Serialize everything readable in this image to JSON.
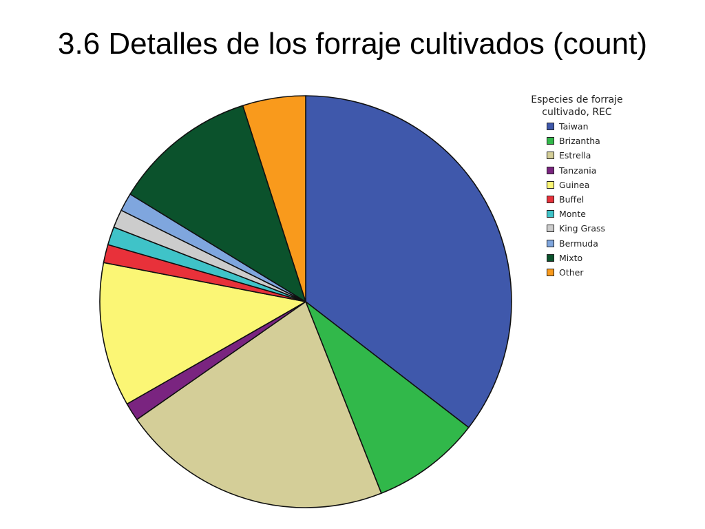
{
  "title": "3.6 Detalles de los forraje cultivados (count)",
  "chart_data": {
    "type": "pie",
    "title": "3.6 Detalles de los forraje cultivados (count)",
    "legend_title_lines": [
      "Especies de forraje",
      "cultivado, REC"
    ],
    "legend_placement": "right",
    "slices": [
      {
        "label": "Taiwan",
        "value": 37.3,
        "color": "#3F58AB"
      },
      {
        "label": "Brizantha",
        "value": 9.0,
        "color": "#31B84A"
      },
      {
        "label": "Estrella",
        "value": 22.4,
        "color": "#D4CE98"
      },
      {
        "label": "Tanzania",
        "value": 1.5,
        "color": "#7A2480"
      },
      {
        "label": "Guinea",
        "value": 11.9,
        "color": "#FBF675"
      },
      {
        "label": "Buffel",
        "value": 1.5,
        "color": "#E8313A"
      },
      {
        "label": "Monte",
        "value": 1.5,
        "color": "#3FC3C8"
      },
      {
        "label": "King Grass",
        "value": 1.5,
        "color": "#CCCCCC"
      },
      {
        "label": "Bermuda",
        "value": 1.5,
        "color": "#7FA6DE"
      },
      {
        "label": "Mixto",
        "value": 11.9,
        "color": "#0B522C"
      },
      {
        "label": "Other",
        "value": 5.2,
        "color": "#F99A1C"
      }
    ]
  }
}
